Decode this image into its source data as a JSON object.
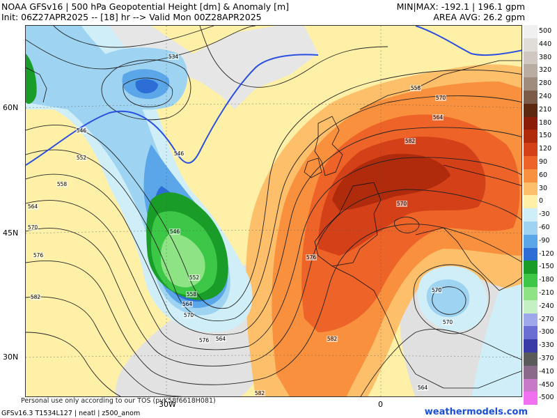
{
  "header": {
    "title_line1": "NOAA GFSv16 | 500 hPa Geopotential Height [dm] & Anomaly [m]",
    "title_line2": "Init: 06Z27APR2025 -- [18] hr --> Valid Mon 00Z28APR2025",
    "minmax": "MIN|MAX: -192.1 | 196.1 gpm",
    "area_avg": "AREA AVG: 26.2 gpm"
  },
  "axes": {
    "lat_labels": [
      "60N",
      "45N",
      "30N"
    ],
    "lon_labels": [
      "30W",
      "0"
    ]
  },
  "contour_labels": [
    "534",
    "546",
    "552",
    "558",
    "564",
    "570",
    "576",
    "582",
    "546",
    "552",
    "558",
    "564",
    "570",
    "576",
    "564",
    "558",
    "570",
    "582",
    "570",
    "564",
    "546",
    "570",
    "576",
    "582",
    "582",
    "564",
    "570"
  ],
  "colorbar": {
    "levels": [
      {
        "label": "500",
        "color": "#f0f0f0"
      },
      {
        "label": "440",
        "color": "#e0dcd8"
      },
      {
        "label": "380",
        "color": "#cfc8c0"
      },
      {
        "label": "320",
        "color": "#b9ada2"
      },
      {
        "label": "280",
        "color": "#a08c7c"
      },
      {
        "label": "240",
        "color": "#7a5c48"
      },
      {
        "label": "210",
        "color": "#5c2810"
      },
      {
        "label": "180",
        "color": "#8a1c08"
      },
      {
        "label": "150",
        "color": "#b02a0c"
      },
      {
        "label": "120",
        "color": "#d44018"
      },
      {
        "label": "90",
        "color": "#ee6428"
      },
      {
        "label": "60",
        "color": "#f8903e"
      },
      {
        "label": "30",
        "color": "#fdbf6a"
      },
      {
        "label": "0",
        "color": "#fff0a8"
      },
      {
        "label": "-30",
        "color": "#cfeef8"
      },
      {
        "label": "-60",
        "color": "#9ed4f2"
      },
      {
        "label": "-90",
        "color": "#5aa6e8"
      },
      {
        "label": "-120",
        "color": "#2c6ed6"
      },
      {
        "label": "-150",
        "color": "#1a9c28"
      },
      {
        "label": "-180",
        "color": "#3cc846"
      },
      {
        "label": "-210",
        "color": "#8ee484"
      },
      {
        "label": "-240",
        "color": "#c4f0c4"
      },
      {
        "label": "-270",
        "color": "#a0a8ec"
      },
      {
        "label": "-300",
        "color": "#6a6ed2"
      },
      {
        "label": "-330",
        "color": "#3a3aa8"
      },
      {
        "label": "-370",
        "color": "#5a5a5a"
      },
      {
        "label": "-410",
        "color": "#8a6a8a"
      },
      {
        "label": "-450",
        "color": "#c87ac8"
      },
      {
        "label": "-500",
        "color": "#f070f0"
      }
    ]
  },
  "footer": {
    "note": "Personal use only according to our TOS (pvK58f6618H081)",
    "model": "GFSv16.3 T1534L127 | neatl | z500_anom",
    "brand": "weathermodels.com"
  }
}
